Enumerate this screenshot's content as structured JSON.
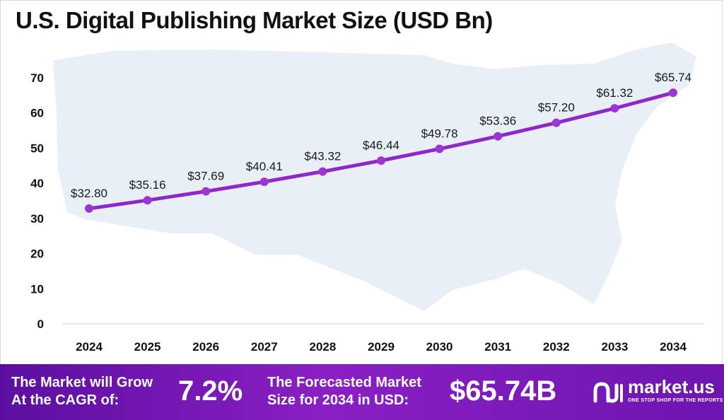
{
  "title": "U.S. Digital Publishing Market Size (USD Bn)",
  "colors": {
    "line": "#8e28c9",
    "marker": "#9b35d4",
    "map": "#e9eff7",
    "axis_text": "#111111",
    "footer_start": "#5b0fa0",
    "footer_end": "#6d15b0"
  },
  "chart_data": {
    "type": "line",
    "title": "U.S. Digital Publishing Market Size (USD Bn)",
    "xlabel": "",
    "ylabel": "",
    "categories": [
      "2024",
      "2025",
      "2026",
      "2027",
      "2028",
      "2029",
      "2030",
      "2031",
      "2032",
      "2033",
      "2034"
    ],
    "values": [
      32.8,
      35.16,
      37.69,
      40.41,
      43.32,
      46.44,
      49.78,
      53.36,
      57.2,
      61.32,
      65.74
    ],
    "data_labels": [
      "$32.80",
      "$35.16",
      "$37.69",
      "$40.41",
      "$43.32",
      "$46.44",
      "$49.78",
      "$53.36",
      "$57.20",
      "$61.32",
      "$65.74"
    ],
    "yticks": [
      "0",
      "10",
      "20",
      "30",
      "40",
      "50",
      "60",
      "70"
    ],
    "ylim": [
      0,
      70
    ],
    "grid": false,
    "legend": "none"
  },
  "footer": {
    "cagr_label_line1": "The Market will Grow",
    "cagr_label_line2": "At the CAGR of:",
    "cagr_value": "7.2%",
    "forecast_label_line1": "The Forecasted Market",
    "forecast_label_line2": "Size for 2034 in USD:",
    "forecast_value": "$65.74B",
    "brand_name": "market.us",
    "brand_tagline": "ONE STOP SHOP FOR THE REPORTS",
    "logo_icon": "market-us-logo-icon"
  }
}
